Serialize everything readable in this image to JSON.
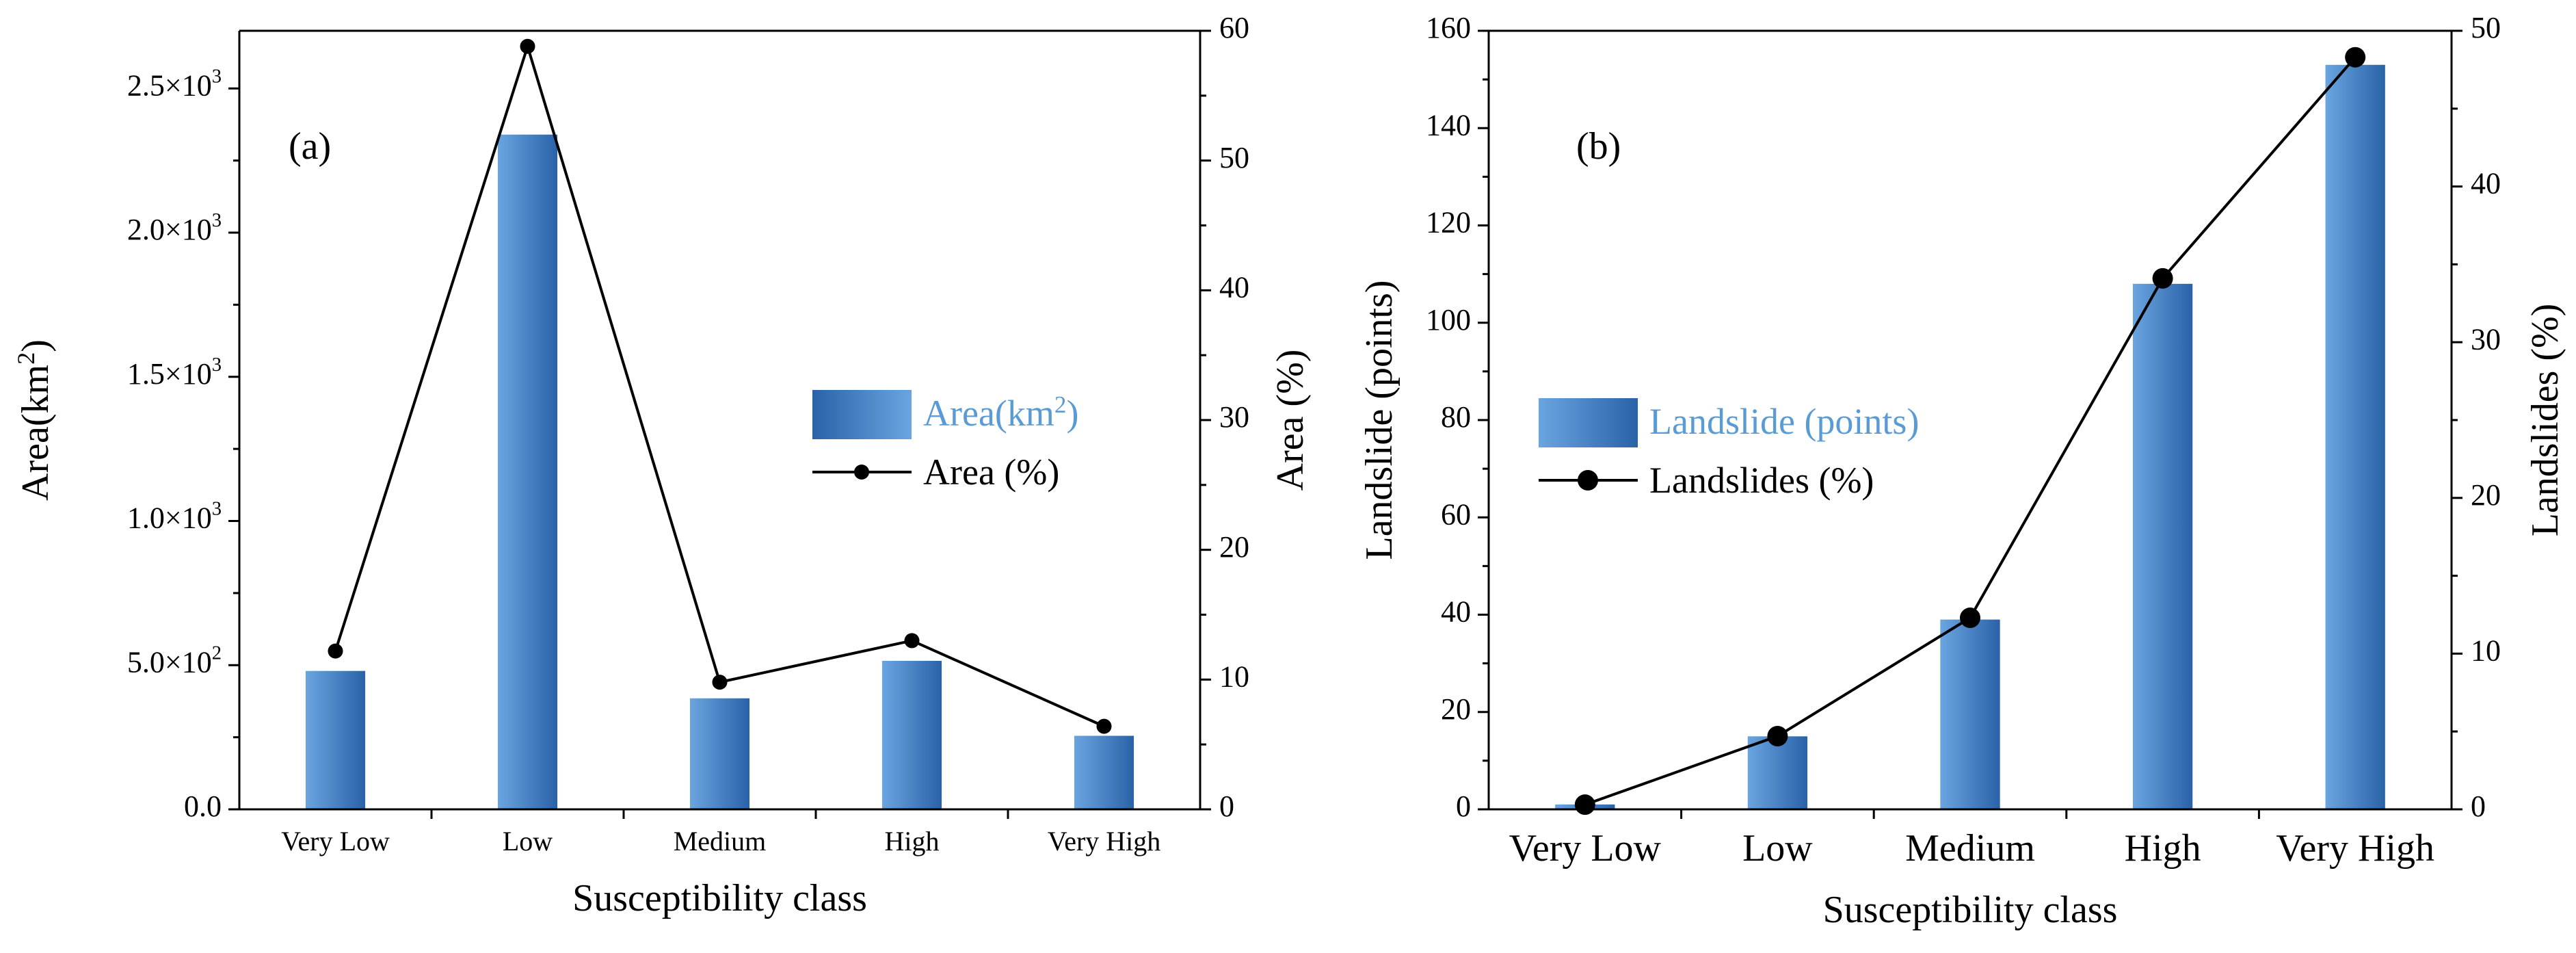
{
  "colors": {
    "bar_dark": "#2a62a8",
    "bar_light": "#69a3de",
    "line": "#000000",
    "legend_blue_text": "#5b9bd5"
  },
  "chart_data": [
    {
      "type": "bar",
      "panel_label": "(a)",
      "categories": [
        "Very Low",
        "Low",
        "Medium",
        "High",
        "Very High"
      ],
      "xlabel": "Susceptibility class",
      "ylabel_left": "Area(km²)",
      "ylabel_right": "Area (%)",
      "ylim_left": [
        0,
        2700
      ],
      "ylim_right": [
        0,
        60
      ],
      "yticks_left": [
        {
          "value": 0,
          "label": "0.0"
        },
        {
          "value": 500,
          "label": "5.0×10²"
        },
        {
          "value": 1000,
          "label": "1.0×10³"
        },
        {
          "value": 1500,
          "label": "1.5×10³"
        },
        {
          "value": 2000,
          "label": "2.0×10³"
        },
        {
          "value": 2500,
          "label": "2.5×10³"
        }
      ],
      "yticks_right": [
        0,
        10,
        20,
        30,
        40,
        50,
        60
      ],
      "series": [
        {
          "name": "Area(km²)",
          "kind": "bar",
          "axis": "left",
          "values": [
            480,
            2340,
            385,
            515,
            255
          ]
        },
        {
          "name": "Area (%)",
          "kind": "line",
          "axis": "right",
          "values": [
            12.2,
            58.8,
            9.8,
            13.0,
            6.4
          ]
        }
      ]
    },
    {
      "type": "bar",
      "panel_label": "(b)",
      "categories": [
        "Very Low",
        "Low",
        "Medium",
        "High",
        "Very High"
      ],
      "xlabel": "Susceptibility class",
      "ylabel_left": "Landslide (points)",
      "ylabel_right": "Landslides (%)",
      "ylim_left": [
        0,
        160
      ],
      "ylim_right": [
        0,
        50
      ],
      "yticks_left": [
        {
          "value": 0,
          "label": "0"
        },
        {
          "value": 20,
          "label": "20"
        },
        {
          "value": 40,
          "label": "40"
        },
        {
          "value": 60,
          "label": "60"
        },
        {
          "value": 80,
          "label": "80"
        },
        {
          "value": 100,
          "label": "100"
        },
        {
          "value": 120,
          "label": "120"
        },
        {
          "value": 140,
          "label": "140"
        },
        {
          "value": 160,
          "label": "160"
        }
      ],
      "yticks_right": [
        0,
        10,
        20,
        30,
        40,
        50
      ],
      "series": [
        {
          "name": "Landslide (points)",
          "kind": "bar",
          "axis": "left",
          "values": [
            1,
            15,
            39,
            108,
            153
          ]
        },
        {
          "name": "Landslides (%)",
          "kind": "line",
          "axis": "right",
          "values": [
            0.3,
            4.7,
            12.3,
            34.1,
            48.3
          ]
        }
      ]
    }
  ]
}
